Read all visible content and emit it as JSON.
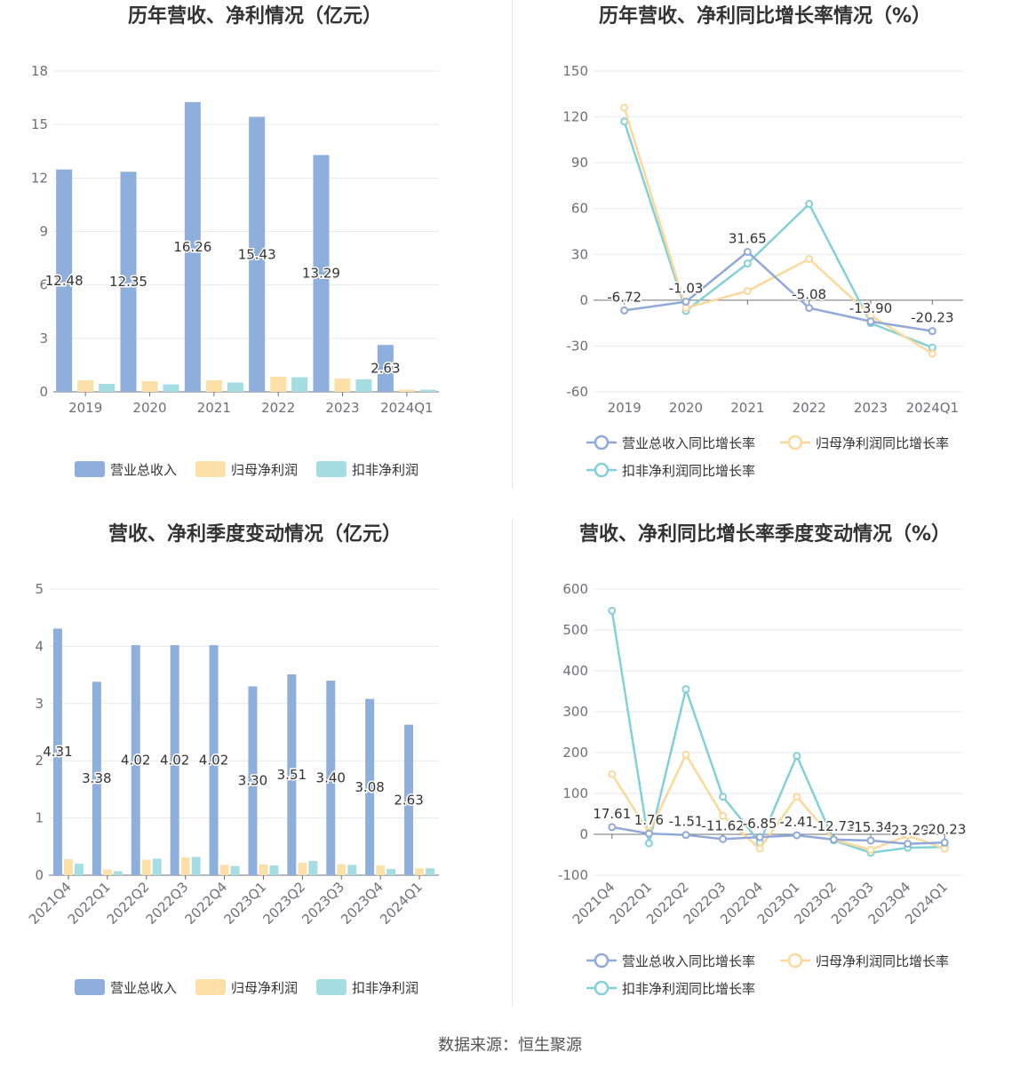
{
  "colors": {
    "revenue": "#8eaedc",
    "net_profit": "#fde0a8",
    "deducted_profit": "#a6dde3",
    "revenue_line": "#90a9d9",
    "net_profit_line": "#fcd89b",
    "deducted_line": "#83d0d6"
  },
  "source": "数据来源：恒生聚源",
  "chart_data": [
    {
      "type": "bar",
      "title": "历年营收、净利情况（亿元）",
      "categories": [
        "2019",
        "2020",
        "2021",
        "2022",
        "2023",
        "2024Q1"
      ],
      "ylim": [
        0,
        18
      ],
      "yticks": [
        0,
        3,
        6,
        9,
        12,
        15,
        18
      ],
      "series": [
        {
          "name": "营业总收入",
          "values": [
            12.48,
            12.35,
            16.26,
            15.43,
            13.29,
            2.63
          ],
          "labels": [
            "12.48",
            "12.35",
            "16.26",
            "15.43",
            "13.29",
            "2.63"
          ]
        },
        {
          "name": "归母净利润",
          "values": [
            0.65,
            0.6,
            0.65,
            0.85,
            0.75,
            0.12
          ]
        },
        {
          "name": "扣非净利润",
          "values": [
            0.45,
            0.42,
            0.52,
            0.82,
            0.7,
            0.12
          ]
        }
      ],
      "legend": "bottom"
    },
    {
      "type": "line",
      "title": "历年营收、净利同比增长率情况（%）",
      "categories": [
        "2019",
        "2020",
        "2021",
        "2022",
        "2023",
        "2024Q1"
      ],
      "ylim": [
        -60,
        150
      ],
      "yticks": [
        -60,
        -30,
        0,
        30,
        60,
        90,
        120,
        150
      ],
      "series": [
        {
          "name": "营业总收入同比增长率",
          "values": [
            -6.72,
            -1.03,
            31.65,
            -5.08,
            -13.9,
            -20.23
          ],
          "labels": [
            "-6.72",
            "-1.03",
            "31.65",
            "-5.08",
            "-13.90",
            "-20.23"
          ]
        },
        {
          "name": "归母净利润同比增长率",
          "values": [
            126,
            -5,
            6,
            27,
            -10,
            -35
          ]
        },
        {
          "name": "扣非净利润同比增长率",
          "values": [
            117,
            -7,
            24,
            63,
            -15,
            -31
          ]
        }
      ],
      "legend": "bottom"
    },
    {
      "type": "bar",
      "title": "营收、净利季度变动情况（亿元）",
      "categories": [
        "2021Q4",
        "2022Q1",
        "2022Q2",
        "2022Q3",
        "2022Q4",
        "2023Q1",
        "2023Q2",
        "2023Q3",
        "2023Q4",
        "2024Q1"
      ],
      "ylim": [
        0,
        5
      ],
      "yticks": [
        0,
        1,
        2,
        3,
        4,
        5
      ],
      "series": [
        {
          "name": "营业总收入",
          "values": [
            4.31,
            3.38,
            4.02,
            4.02,
            4.02,
            3.3,
            3.51,
            3.4,
            3.08,
            2.63
          ],
          "labels": [
            "4.31",
            "3.38",
            "4.02",
            "4.02",
            "4.02",
            "3.30",
            "3.51",
            "3.40",
            "3.08",
            "2.63"
          ]
        },
        {
          "name": "归母净利润",
          "values": [
            0.28,
            0.1,
            0.27,
            0.31,
            0.18,
            0.19,
            0.22,
            0.19,
            0.17,
            0.12
          ]
        },
        {
          "name": "扣非净利润",
          "values": [
            0.2,
            0.07,
            0.29,
            0.32,
            0.16,
            0.17,
            0.25,
            0.18,
            0.11,
            0.12
          ]
        }
      ],
      "legend": "bottom"
    },
    {
      "type": "line",
      "title": "营收、净利同比增长率季度变动情况（%）",
      "categories": [
        "2021Q4",
        "2022Q1",
        "2022Q2",
        "2022Q3",
        "2022Q4",
        "2023Q1",
        "2023Q2",
        "2023Q3",
        "2023Q4",
        "2024Q1"
      ],
      "ylim": [
        -100,
        600
      ],
      "yticks": [
        -100,
        0,
        100,
        200,
        300,
        400,
        500,
        600
      ],
      "series": [
        {
          "name": "营业总收入同比增长率",
          "values": [
            17.61,
            1.76,
            -1.51,
            -11.62,
            -6.85,
            -2.41,
            -12.73,
            -15.34,
            -23.29,
            -20.23
          ],
          "labels": [
            "17.61",
            "1.76",
            "-1.51",
            "-11.62",
            "-6.85",
            "-2.41",
            "-12.73",
            "-15.34",
            "-23.29",
            "-20.23"
          ]
        },
        {
          "name": "归母净利润同比增长率",
          "values": [
            147,
            5,
            195,
            45,
            -35,
            92,
            -13,
            -38,
            -3,
            -35
          ]
        },
        {
          "name": "扣非净利润同比增长率",
          "values": [
            547,
            -22,
            355,
            92,
            -20,
            192,
            -15,
            -45,
            -33,
            -31
          ]
        }
      ],
      "legend": "bottom"
    }
  ]
}
